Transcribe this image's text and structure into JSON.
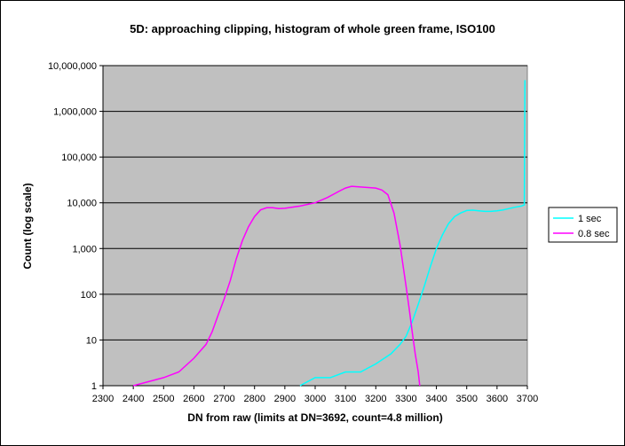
{
  "chart_data": {
    "type": "line",
    "title": "5D: approaching clipping, histogram of whole green frame, ISO100",
    "xlabel": "DN from raw (limits at DN=3692, count=4.8 million)",
    "ylabel": "Count (log scale)",
    "xlim": [
      2300,
      3700
    ],
    "ylim": [
      1,
      10000000
    ],
    "yscale": "log",
    "x_ticks": [
      "2300",
      "2400",
      "2500",
      "2600",
      "2700",
      "2800",
      "2900",
      "3000",
      "3100",
      "3200",
      "3300",
      "3400",
      "3500",
      "3600",
      "3700"
    ],
    "y_ticks": [
      "1",
      "10",
      "100",
      "1,000",
      "10,000",
      "100,000",
      "1,000,000",
      "10,000,000"
    ],
    "grid": "horizontal",
    "plot_background": "#c0c0c0",
    "legend_position": "right",
    "series": [
      {
        "name": "1 sec",
        "color": "#00ffff",
        "x": [
          2950,
          3000,
          3050,
          3100,
          3150,
          3200,
          3250,
          3280,
          3300,
          3320,
          3340,
          3360,
          3380,
          3400,
          3420,
          3440,
          3460,
          3480,
          3500,
          3520,
          3540,
          3560,
          3580,
          3600,
          3620,
          3640,
          3660,
          3680,
          3690,
          3692
        ],
        "y": [
          1,
          1.5,
          1.5,
          2,
          2,
          3,
          5,
          8,
          12,
          25,
          60,
          150,
          400,
          1000,
          2000,
          3500,
          5000,
          6000,
          6800,
          6900,
          6700,
          6500,
          6500,
          6700,
          7000,
          7500,
          8000,
          8500,
          9000,
          4800000
        ]
      },
      {
        "name": "0.8 sec",
        "color": "#ff00ff",
        "x": [
          2400,
          2500,
          2550,
          2600,
          2640,
          2660,
          2680,
          2700,
          2720,
          2740,
          2760,
          2780,
          2800,
          2820,
          2840,
          2860,
          2880,
          2900,
          2950,
          3000,
          3040,
          3080,
          3100,
          3120,
          3160,
          3200,
          3220,
          3240,
          3260,
          3280,
          3300,
          3310,
          3320,
          3330,
          3340,
          3345
        ],
        "y": [
          1,
          1.5,
          2,
          4,
          8,
          15,
          35,
          80,
          200,
          600,
          1500,
          3000,
          5000,
          7000,
          7800,
          7800,
          7500,
          7600,
          8500,
          10000,
          13000,
          18000,
          21000,
          23000,
          22000,
          21000,
          19000,
          15000,
          6000,
          1200,
          150,
          50,
          15,
          5,
          2,
          1
        ]
      }
    ]
  }
}
